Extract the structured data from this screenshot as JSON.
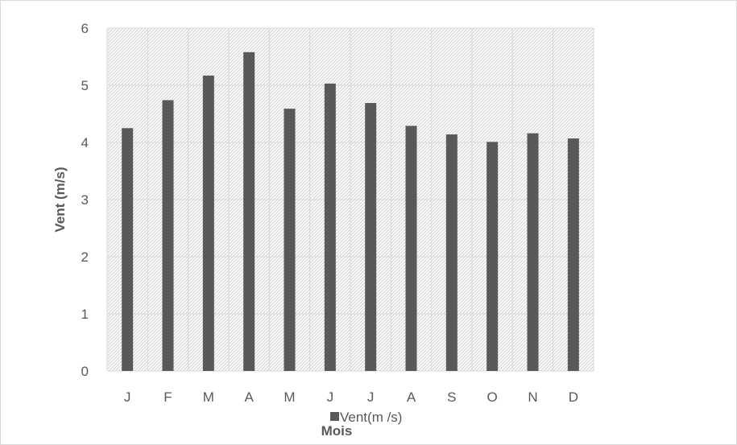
{
  "chart_data": {
    "type": "bar",
    "categories": [
      "J",
      "F",
      "M",
      "A",
      "M",
      "J",
      "J",
      "A",
      "S",
      "O",
      "N",
      "D"
    ],
    "series": [
      {
        "name": "Vent(m /s)",
        "values": [
          4.25,
          4.74,
          5.17,
          5.58,
          4.59,
          5.03,
          4.69,
          4.29,
          4.14,
          4.01,
          4.16,
          4.07
        ],
        "color": "#595959"
      }
    ],
    "title": "",
    "xlabel": "Mois",
    "ylabel": "Vent (m/s)",
    "ylim": [
      0,
      6
    ],
    "yticks": [
      "0",
      "1",
      "2",
      "3",
      "4",
      "5",
      "6"
    ],
    "grid": true,
    "plot_background": "hatched-light-gray",
    "legend_position": "bottom"
  }
}
